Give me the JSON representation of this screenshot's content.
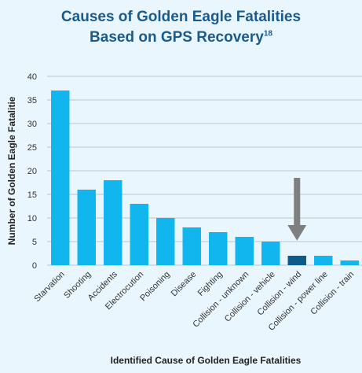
{
  "chart_data": {
    "type": "bar",
    "title_line1": "Causes of Golden Eagle Fatalities",
    "title_line2": "Based on GPS Recovery",
    "title_superscript": "18",
    "xlabel": "Identified Cause of Golden Eagle Fatalities",
    "ylabel": "Number of Golden Eagle Fatalitie",
    "ylim": [
      0,
      40
    ],
    "yticks": [
      0,
      5,
      10,
      15,
      20,
      25,
      30,
      35,
      40
    ],
    "grid": true,
    "categories": [
      "Starvation",
      "Shooting",
      "Accidents",
      "Electrocution",
      "Poisoning",
      "Disease",
      "Fighting",
      "Collision - unknown",
      "Collision - vehicle",
      "Collision - wind",
      "Collision - power line",
      "Collision - train"
    ],
    "values": [
      37,
      16,
      18,
      13,
      10,
      8,
      7,
      6,
      5,
      2,
      2,
      1
    ],
    "highlight_category": "Collision - wind",
    "annotation": "down-arrow-pointing-at-collision-wind",
    "colors": {
      "bar": "#12b6ef",
      "highlight": "#0d5a8c",
      "arrow": "#7f7f7f",
      "title": "#1a5b8e",
      "background": "#eaf6fd"
    }
  }
}
